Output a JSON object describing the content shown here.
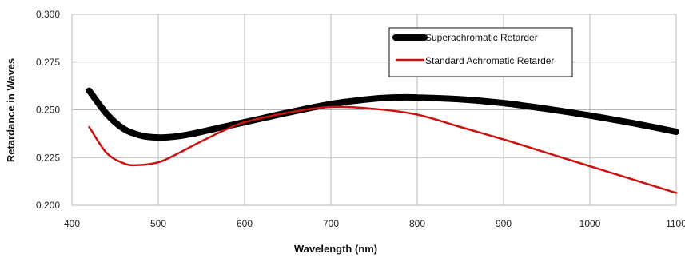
{
  "chart_data": {
    "type": "line",
    "title": "",
    "xlabel": "Wavelength (nm)",
    "ylabel": "Retardance in Waves",
    "xlim": [
      400,
      1100
    ],
    "ylim": [
      0.2,
      0.3
    ],
    "grid": true,
    "legend_position": "top-right",
    "x_ticks": [
      "400",
      "500",
      "600",
      "700",
      "800",
      "900",
      "1000",
      "1100"
    ],
    "y_ticks": [
      "0.200",
      "0.225",
      "0.250",
      "0.275",
      "0.300"
    ],
    "series": [
      {
        "name": "Superachromatic Retarder",
        "color": "#000000",
        "x": [
          420,
          440,
          460,
          480,
          500,
          520,
          540,
          560,
          580,
          600,
          620,
          650,
          700,
          750,
          780,
          800,
          850,
          900,
          950,
          1000,
          1050,
          1100
        ],
        "y": [
          0.26,
          0.248,
          0.24,
          0.2365,
          0.2355,
          0.236,
          0.2375,
          0.2395,
          0.2415,
          0.2435,
          0.2455,
          0.2485,
          0.253,
          0.2558,
          0.2565,
          0.2564,
          0.2555,
          0.2535,
          0.2505,
          0.247,
          0.243,
          0.2385
        ]
      },
      {
        "name": "Standard Achromatic Retarder",
        "color": "#cc1111",
        "x": [
          420,
          440,
          460,
          475,
          500,
          520,
          550,
          580,
          600,
          650,
          700,
          750,
          800,
          850,
          900,
          950,
          1000,
          1050,
          1100
        ],
        "y": [
          0.241,
          0.2275,
          0.222,
          0.221,
          0.2225,
          0.2265,
          0.2335,
          0.24,
          0.2435,
          0.2485,
          0.2515,
          0.2505,
          0.2475,
          0.241,
          0.2345,
          0.2275,
          0.2205,
          0.2135,
          0.2065
        ]
      }
    ]
  }
}
